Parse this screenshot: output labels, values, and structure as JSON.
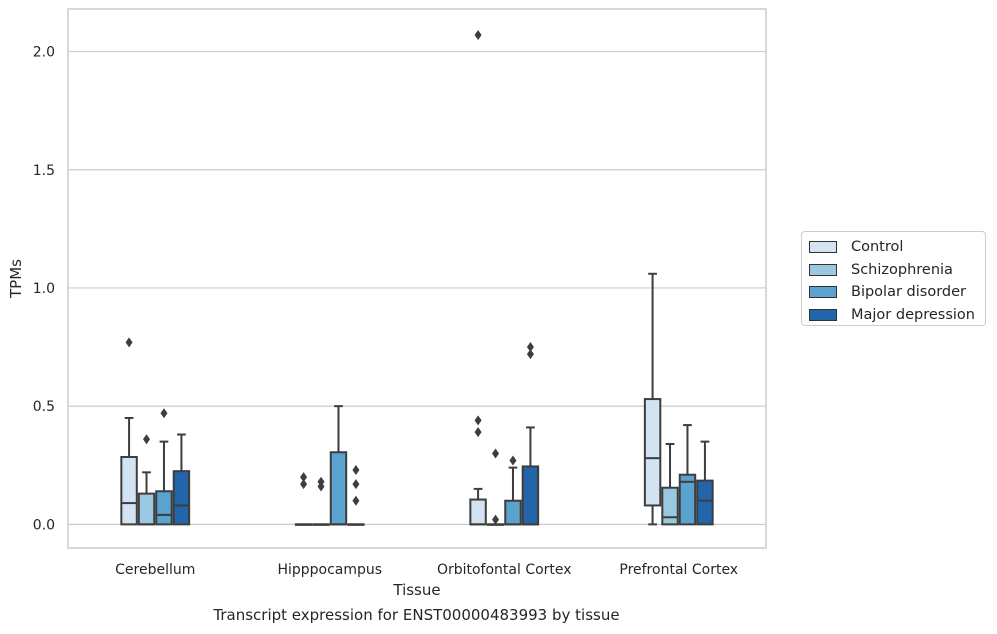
{
  "chart_data": {
    "type": "box",
    "xlabel": "Tissue",
    "ylabel": "TPMs",
    "caption": "Transcript expression for ENST00000483993 by tissue",
    "ylim": [
      -0.1,
      2.18
    ],
    "yticks": [
      "0.0",
      "0.5",
      "1.0",
      "1.5",
      "2.0"
    ],
    "ytick_values": [
      0.0,
      0.5,
      1.0,
      1.5,
      2.0
    ],
    "grid": "horizontal",
    "legend_position": "right",
    "categories": [
      "Cerebellum",
      "Hipppocampus",
      "Orbitofontal Cortex",
      "Prefrontal Cortex"
    ],
    "series": [
      {
        "name": "Control",
        "color": "#d3e3f2",
        "boxes": [
          {
            "min": 0.0,
            "q1": 0.0,
            "median": 0.09,
            "q3": 0.285,
            "max": 0.45,
            "outliers": [
              0.77
            ]
          },
          {
            "min": 0.0,
            "q1": 0.0,
            "median": 0.0,
            "q3": 0.0,
            "max": 0.0,
            "outliers": [
              0.2,
              0.17
            ]
          },
          {
            "min": 0.0,
            "q1": 0.0,
            "median": 0.0,
            "q3": 0.105,
            "max": 0.15,
            "outliers": [
              0.44,
              0.39,
              2.07
            ]
          },
          {
            "min": 0.0,
            "q1": 0.08,
            "median": 0.28,
            "q3": 0.53,
            "max": 1.06,
            "outliers": []
          }
        ]
      },
      {
        "name": "Schizophrenia",
        "color": "#9ac8e0",
        "boxes": [
          {
            "min": 0.0,
            "q1": 0.0,
            "median": 0.0,
            "q3": 0.13,
            "max": 0.22,
            "outliers": [
              0.36
            ]
          },
          {
            "min": 0.0,
            "q1": 0.0,
            "median": 0.0,
            "q3": 0.0,
            "max": 0.0,
            "outliers": [
              0.18,
              0.16
            ]
          },
          {
            "min": 0.0,
            "q1": 0.0,
            "median": 0.0,
            "q3": 0.0,
            "max": 0.0,
            "outliers": [
              0.3,
              0.02
            ]
          },
          {
            "min": 0.0,
            "q1": 0.0,
            "median": 0.03,
            "q3": 0.155,
            "max": 0.34,
            "outliers": []
          }
        ]
      },
      {
        "name": "Bipolar disorder",
        "color": "#5ba3cf",
        "boxes": [
          {
            "min": 0.0,
            "q1": 0.0,
            "median": 0.04,
            "q3": 0.14,
            "max": 0.35,
            "outliers": [
              0.47
            ]
          },
          {
            "min": 0.0,
            "q1": 0.0,
            "median": 0.0,
            "q3": 0.305,
            "max": 0.5,
            "outliers": []
          },
          {
            "min": 0.0,
            "q1": 0.0,
            "median": 0.0,
            "q3": 0.1,
            "max": 0.24,
            "outliers": [
              0.27
            ]
          },
          {
            "min": 0.0,
            "q1": 0.0,
            "median": 0.18,
            "q3": 0.21,
            "max": 0.42,
            "outliers": []
          }
        ]
      },
      {
        "name": "Major depression",
        "color": "#2365aa",
        "boxes": [
          {
            "min": 0.0,
            "q1": 0.0,
            "median": 0.08,
            "q3": 0.225,
            "max": 0.38,
            "outliers": []
          },
          {
            "min": 0.0,
            "q1": 0.0,
            "median": 0.0,
            "q3": 0.0,
            "max": 0.0,
            "outliers": [
              0.23,
              0.17,
              0.1
            ]
          },
          {
            "min": 0.0,
            "q1": 0.0,
            "median": 0.0,
            "q3": 0.245,
            "max": 0.41,
            "outliers": [
              0.75,
              0.72
            ]
          },
          {
            "min": 0.0,
            "q1": 0.0,
            "median": 0.1,
            "q3": 0.185,
            "max": 0.35,
            "outliers": []
          }
        ]
      }
    ]
  }
}
